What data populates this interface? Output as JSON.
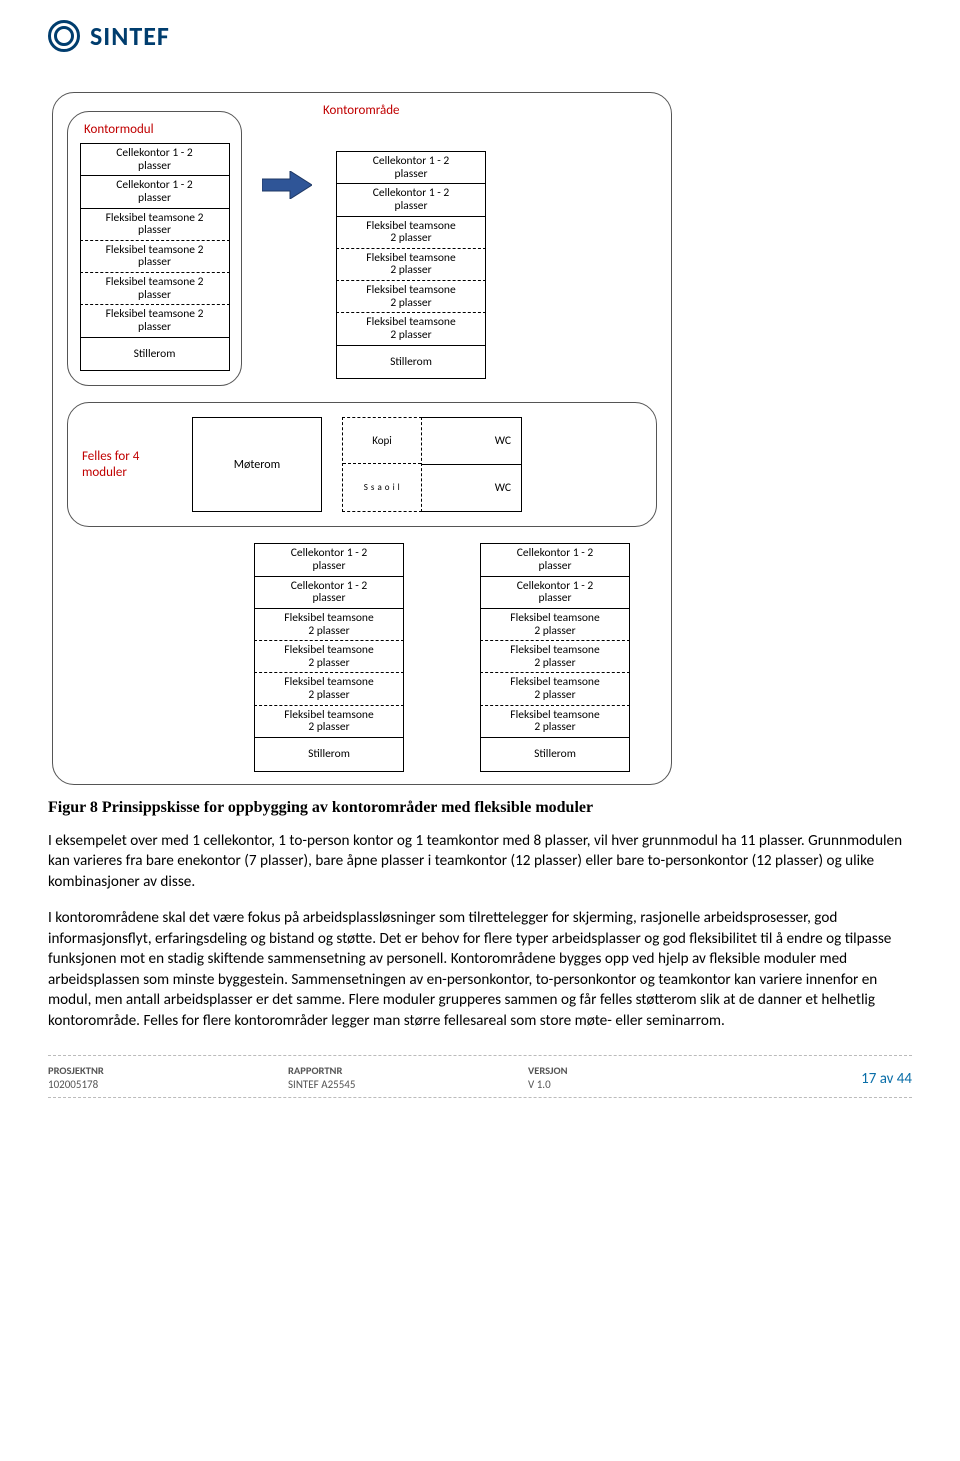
{
  "brand": {
    "name": "SINTEF",
    "color": "#003d6e"
  },
  "diagram": {
    "labels": {
      "kontormodul": "Kontormodul",
      "kontoromrade": "Kontorområde",
      "felles": "Felles for  4 moduler"
    },
    "module_small": [
      {
        "t": "Cellekontor 1 - 2 plasser",
        "d": false
      },
      {
        "t": "Cellekontor 1 - 2 plasser",
        "d": false
      },
      {
        "t": "Fleksibel teamsone 2 plasser",
        "d": true
      },
      {
        "t": "Fleksibel teamsone 2 plasser",
        "d": true
      },
      {
        "t": "Fleksibel teamsone 2 plasser",
        "d": true
      },
      {
        "t": "Fleksibel teamsone 2 plasser",
        "d": false
      },
      {
        "t": "Stillerom",
        "d": false
      }
    ],
    "module_large": [
      {
        "t": "Cellekontor 1 - 2 plasser",
        "d": false
      },
      {
        "t": "Cellekontor 1 - 2 plasser",
        "d": false
      },
      {
        "t": "Fleksibel teamsone 2 plasser",
        "d": true
      },
      {
        "t": "Fleksibel teamsone 2 plasser",
        "d": true
      },
      {
        "t": "Fleksibel teamsone 2 plasser",
        "d": true
      },
      {
        "t": "Fleksibel teamsone 2 plasser",
        "d": false
      },
      {
        "t": "Stillerom",
        "d": false
      }
    ],
    "shared": {
      "meeting": "Møterom",
      "kopi": "Kopi",
      "sosial": "S  s  a\no  i  l",
      "wc": "WC"
    },
    "arrow_color": "#2f5597"
  },
  "caption": "Figur 8 Prinsippskisse for oppbygging av kontorområder med fleksible moduler",
  "para1": "I eksempelet over med 1 cellekontor, 1 to-person kontor og 1 teamkontor med 8 plasser, vil hver grunnmodul ha 11 plasser. Grunnmodulen kan varieres fra bare enekontor (7 plasser), bare åpne plasser i teamkontor (12 plasser) eller bare to-personkontor (12 plasser) og ulike kombinasjoner av disse.",
  "para2": "I kontorområdene skal det være fokus på arbeidsplassløsninger som tilrettelegger for skjerming, rasjonelle arbeidsprosesser, god informasjonsflyt, erfaringsdeling og bistand og støtte. Det er behov for flere typer arbeidsplasser og god fleksibilitet til å endre og tilpasse funksjonen mot en stadig skiftende sammensetning av personell. Kontorområdene bygges opp ved hjelp av fleksible moduler med arbeidsplassen som minste byggestein. Sammensetningen av en-personkontor, to-personkontor og teamkontor kan variere innenfor en modul, men antall arbeidsplasser er det samme. Flere moduler grupperes sammen og får felles støtterom slik at de danner et helhetlig kontorområde. Felles for flere kontorområder legger man større fellesareal som store møte- eller seminarrom.",
  "footer": {
    "c1": {
      "lab": "PROSJEKTNR",
      "val": "102005178"
    },
    "c2": {
      "lab": "RAPPORTNR",
      "val": "SINTEF A25545"
    },
    "c3": {
      "lab": "VERSJON",
      "val": "V 1.0"
    },
    "page": "17 av 44",
    "page_color": "#0a6ea8"
  }
}
